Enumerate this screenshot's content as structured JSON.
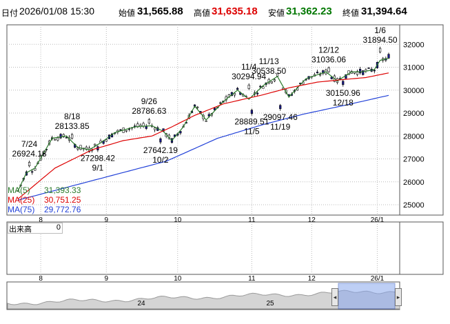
{
  "header": {
    "date_label": "日付",
    "datetime": "2026/01/08 15:30",
    "open_label": "始値",
    "open": "31,565.88",
    "high_label": "高値",
    "high": "31,635.18",
    "low_label": "安値",
    "low": "31,362.23",
    "close_label": "終値",
    "close": "31,394.64",
    "colors": {
      "high": "#dd0000",
      "low": "#007700",
      "default": "#000000"
    }
  },
  "legend": [
    {
      "name": "MA(5)",
      "value": "31,393.33",
      "color": "#2a7a2a"
    },
    {
      "name": "MA(25)",
      "value": "30,751.25",
      "color": "#dd0000"
    },
    {
      "name": "MA(75)",
      "value": "29,772.76",
      "color": "#1f3fd8"
    }
  ],
  "volume": {
    "label": "出来高",
    "value": "0"
  },
  "nav": {
    "labels": [
      "24",
      "25"
    ],
    "left_handle": "◂",
    "right_handle": "▸"
  },
  "chart_data": {
    "type": "candlestick",
    "y_ticks": [
      25000,
      26000,
      27000,
      28000,
      29000,
      30000,
      31000,
      32000
    ],
    "ylim": [
      24550,
      32850
    ],
    "x_ticks": [
      {
        "label": "8",
        "day": 8
      },
      {
        "label": "9",
        "day": 31
      },
      {
        "label": "10",
        "day": 56
      },
      {
        "label": "11",
        "day": 82
      },
      {
        "label": "12",
        "day": 103
      },
      {
        "label": "26/1",
        "day": 126
      }
    ],
    "n_days": 131,
    "candle_colors": {
      "up": "#ffffff",
      "down": "#1a1a8c",
      "edge": "#000000"
    },
    "series": [
      {
        "name": "MA(5)",
        "color": "#2a7a2a",
        "anchors": [
          [
            0,
            25600
          ],
          [
            3,
            26400
          ],
          [
            6,
            26600
          ],
          [
            12,
            27900
          ],
          [
            17,
            28000
          ],
          [
            21,
            27500
          ],
          [
            25,
            27400
          ],
          [
            29,
            27700
          ],
          [
            34,
            28150
          ],
          [
            41,
            28400
          ],
          [
            47,
            28450
          ],
          [
            51,
            28200
          ],
          [
            54,
            27800
          ],
          [
            58,
            28400
          ],
          [
            62,
            29300
          ],
          [
            66,
            28700
          ],
          [
            72,
            29500
          ],
          [
            77,
            30000
          ],
          [
            81,
            29600
          ],
          [
            86,
            30200
          ],
          [
            91,
            30600
          ],
          [
            95,
            29700
          ],
          [
            101,
            30500
          ],
          [
            108,
            30800
          ],
          [
            112,
            30400
          ],
          [
            117,
            30800
          ],
          [
            121,
            30800
          ],
          [
            125,
            30900
          ],
          [
            127,
            31300
          ],
          [
            130,
            31393
          ]
        ]
      },
      {
        "name": "MA(25)",
        "color": "#dd0000",
        "anchors": [
          [
            0,
            25250
          ],
          [
            13,
            26600
          ],
          [
            26,
            27400
          ],
          [
            37,
            27800
          ],
          [
            47,
            28000
          ],
          [
            54,
            28400
          ],
          [
            62,
            28900
          ],
          [
            72,
            29400
          ],
          [
            86,
            29800
          ],
          [
            95,
            30100
          ],
          [
            105,
            30350
          ],
          [
            113,
            30450
          ],
          [
            122,
            30550
          ],
          [
            130,
            30751
          ]
        ]
      },
      {
        "name": "MA(75)",
        "color": "#1f3fd8",
        "anchors": [
          [
            0,
            25200
          ],
          [
            26,
            26050
          ],
          [
            52,
            26900
          ],
          [
            70,
            27900
          ],
          [
            86,
            28500
          ],
          [
            100,
            28950
          ],
          [
            115,
            29350
          ],
          [
            130,
            29773
          ]
        ]
      }
    ],
    "annotations": [
      {
        "date": "7/24",
        "value": "26924.18",
        "kind": "high",
        "day": 4,
        "price": 26924.18
      },
      {
        "date": "8/18",
        "value": "28133.85",
        "kind": "high",
        "day": 19,
        "price": 28133.85
      },
      {
        "date": "9/1",
        "value": "27298.42",
        "kind": "low",
        "day": 28,
        "price": 27298.42
      },
      {
        "date": "9/26",
        "value": "28786.63",
        "kind": "high",
        "day": 46,
        "price": 28786.63
      },
      {
        "date": "10/2",
        "value": "27642.19",
        "kind": "low",
        "day": 50,
        "price": 27642.19
      },
      {
        "date": "11/4",
        "value": "30294.94",
        "kind": "high",
        "day": 81,
        "price": 30294.94
      },
      {
        "date": "11/13",
        "value": "30538.50",
        "kind": "high",
        "day": 88,
        "price": 30538.5
      },
      {
        "date": "11/5",
        "value": "28889.51",
        "kind": "low",
        "day": 82,
        "price": 28889.51
      },
      {
        "date": "11/19",
        "value": "29097.46",
        "kind": "low",
        "day": 92,
        "price": 29097.46
      },
      {
        "date": "12/12",
        "value": "31036.06",
        "kind": "high",
        "day": 109,
        "price": 31036.06
      },
      {
        "date": "12/18",
        "value": "30150.96",
        "kind": "low",
        "day": 114,
        "price": 30150.96
      },
      {
        "date": "1/6",
        "value": "31894.50",
        "kind": "high",
        "day": 127,
        "price": 31894.5
      }
    ],
    "last_candle": {
      "open": 31565.88,
      "high": 31635.18,
      "low": 31362.23,
      "close": 31394.64
    }
  }
}
